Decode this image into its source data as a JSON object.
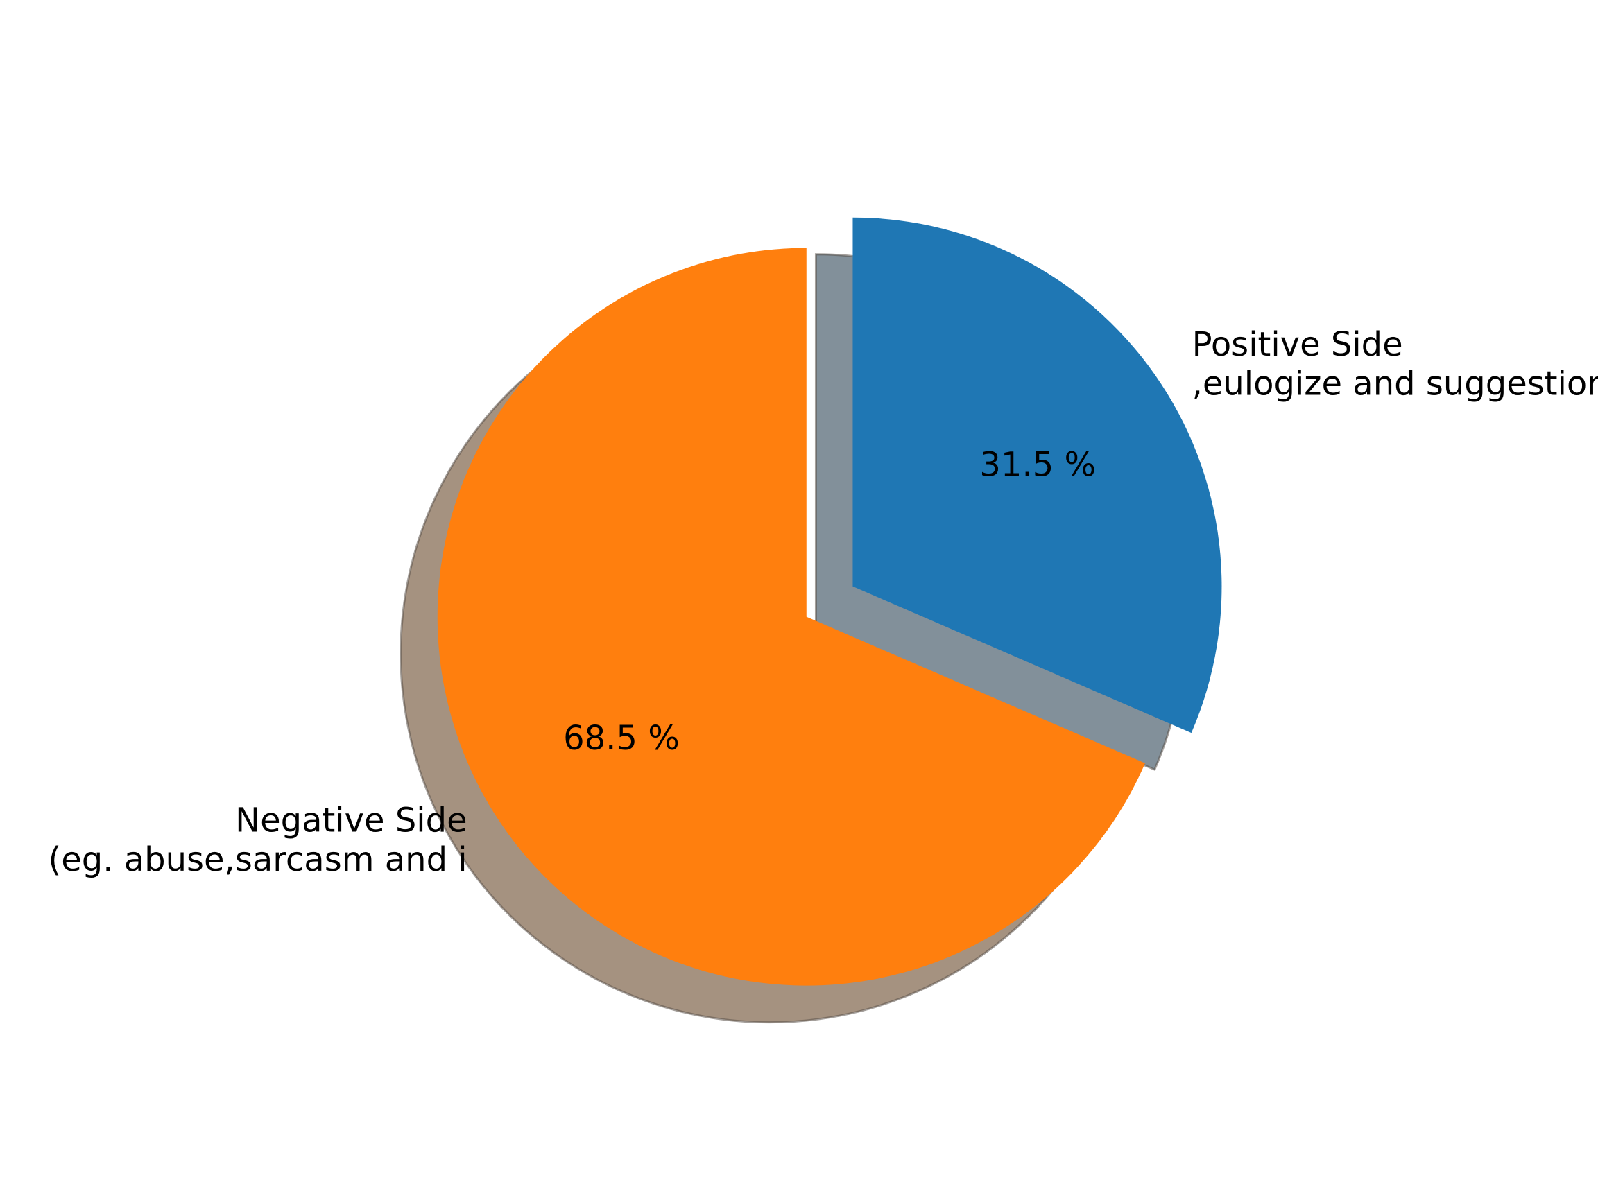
{
  "chart_data": {
    "type": "pie",
    "title": "",
    "start_angle_deg": 90,
    "direction": "clockwise",
    "shadow": true,
    "explode": [
      0.1,
      0.05
    ],
    "slices": [
      {
        "label_lines": [
          "Positive Side",
          ",eulogize and suggestion)"
        ],
        "value": 31.5,
        "pct_label": "31.5 %",
        "color": "#1f77b4",
        "shadow_color": "#82909a"
      },
      {
        "label_lines": [
          "Negative Side",
          "(eg. abuse,sarcasm and i"
        ],
        "value": 68.5,
        "pct_label": "68.5 %",
        "color": "#ff7f0e",
        "shadow_color": "#a59280"
      }
    ]
  }
}
